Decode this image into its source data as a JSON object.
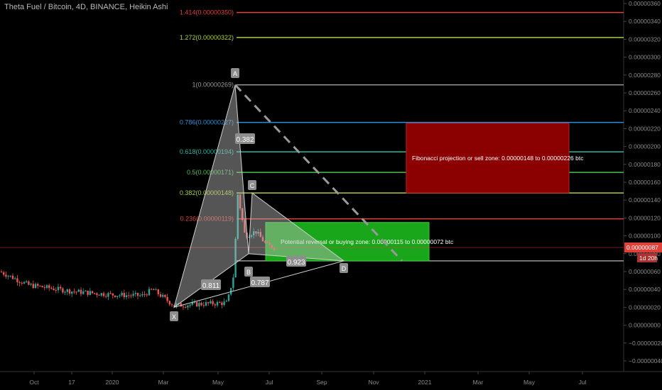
{
  "header": {
    "title": "Theta Fuel / Bitcoin, 4D, BINANCE, Heikin Ashi"
  },
  "price_axis": {
    "labels": [
      "0.00000360",
      "0.00000340",
      "0.00000320",
      "0.00000300",
      "0.00000280",
      "0.00000260",
      "0.00000240",
      "0.00000220",
      "0.00000200",
      "0.00000180",
      "0.00000160",
      "0.00000140",
      "0.00000120",
      "0.00000100",
      "0.00000080",
      "0.00000060",
      "0.00000040",
      "0.00000020",
      "0.00000000",
      "−0.00000020",
      "−0.00000040"
    ],
    "current_price": "0.00000087",
    "countdown": "1d 20h"
  },
  "time_axis": {
    "labels": [
      "Oct",
      "17",
      "2020",
      "Mar",
      "May",
      "Jul",
      "Sep",
      "Nov",
      "2021",
      "Mar",
      "May",
      "Jul"
    ]
  },
  "fib_levels": [
    {
      "label": "1.414(0.00000350)",
      "color": "#e0403a"
    },
    {
      "label": "1.272(0.00000322)",
      "color": "#a8d03a"
    },
    {
      "label": "1(0.00000269)",
      "color": "#9a9a9a"
    },
    {
      "label": "0.786(0.00000227)",
      "color": "#2a8fd8"
    },
    {
      "label": "0.618(0.00000194)",
      "color": "#2ab8a0"
    },
    {
      "label": "0.5(0.00000171)",
      "color": "#4cbf4c"
    },
    {
      "label": "0.382(0.00000148)",
      "color": "#a8d03a"
    },
    {
      "label": "0.236(0.00000119)",
      "color": "#e0403a"
    }
  ],
  "pattern": {
    "points": [
      "X",
      "A",
      "B",
      "C",
      "D"
    ],
    "ratios": [
      "0.382",
      "0.811",
      "0.787",
      "0.923"
    ]
  },
  "zones": {
    "sell": "Fibonacci projection or sell zone: 0.00000148 to 0.00000226 btc",
    "buy": "Potential reversal or buying zone: 0.00000115 to 0.00000072 btc"
  },
  "colors": {
    "background": "#000000",
    "candle_up": "#26a69a",
    "candle_down": "#ef5350",
    "sell_zone": "#8b0000",
    "buy_zone": "#1aa61a",
    "price_line": "#e0403a",
    "pattern_fill": "#bdbdbd"
  },
  "chart_data": {
    "type": "candlestick",
    "series": [
      {
        "name": "Theta Fuel / Bitcoin",
        "kind": "heikin-ashi candles",
        "x": [
          "2019-09",
          "2019-10",
          "2019-11",
          "2019-12",
          "2020-01",
          "2020-02",
          "2020-03",
          "2020-04",
          "2020-05",
          "2020-05-late",
          "2020-06",
          "2020-07",
          "2020-07-late"
        ],
        "values": [
          6e-07,
          4.5e-07,
          4e-07,
          3.5e-07,
          3.3e-07,
          4e-07,
          2.2e-07,
          2.4e-07,
          2.5e-07,
          1.5e-06,
          1e-06,
          9e-07,
          8.7e-07
        ]
      }
    ],
    "harmonic_points": {
      "X": 2e-07,
      "A": 2.69e-06,
      "B": 8e-07,
      "C": 1.48e-06,
      "D": 7.2e-07
    },
    "ylim": [
      -4.5e-07,
      3.65e-06
    ],
    "xlabel": "",
    "ylabel": "",
    "grid": false
  }
}
